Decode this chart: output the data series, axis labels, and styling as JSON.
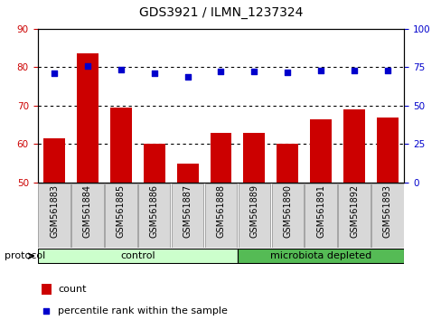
{
  "title": "GDS3921 / ILMN_1237324",
  "samples": [
    "GSM561883",
    "GSM561884",
    "GSM561885",
    "GSM561886",
    "GSM561887",
    "GSM561888",
    "GSM561889",
    "GSM561890",
    "GSM561891",
    "GSM561892",
    "GSM561893"
  ],
  "bar_values": [
    61.5,
    83.5,
    69.5,
    60.0,
    55.0,
    63.0,
    63.0,
    60.0,
    66.5,
    69.0,
    67.0
  ],
  "dot_values": [
    71.0,
    75.5,
    73.5,
    71.0,
    68.5,
    72.0,
    72.0,
    71.5,
    73.0,
    73.0,
    73.0
  ],
  "bar_color": "#cc0000",
  "dot_color": "#0000cc",
  "left_ylim": [
    50,
    90
  ],
  "right_ylim": [
    0,
    100
  ],
  "left_yticks": [
    50,
    60,
    70,
    80,
    90
  ],
  "right_yticks": [
    0,
    25,
    50,
    75,
    100
  ],
  "left_tick_color": "#cc0000",
  "right_tick_color": "#0000cc",
  "n_control": 6,
  "n_micro": 5,
  "control_color": "#ccffcc",
  "microbiota_color": "#55bb55",
  "protocol_label": "protocol",
  "control_label": "control",
  "microbiota_label": "microbiota depleted",
  "legend_count_label": "count",
  "legend_pct_label": "percentile rank within the sample",
  "sample_bg_color": "#d8d8d8",
  "title_fontsize": 10,
  "tick_label_fontsize": 7,
  "axis_tick_fontsize": 7.5
}
